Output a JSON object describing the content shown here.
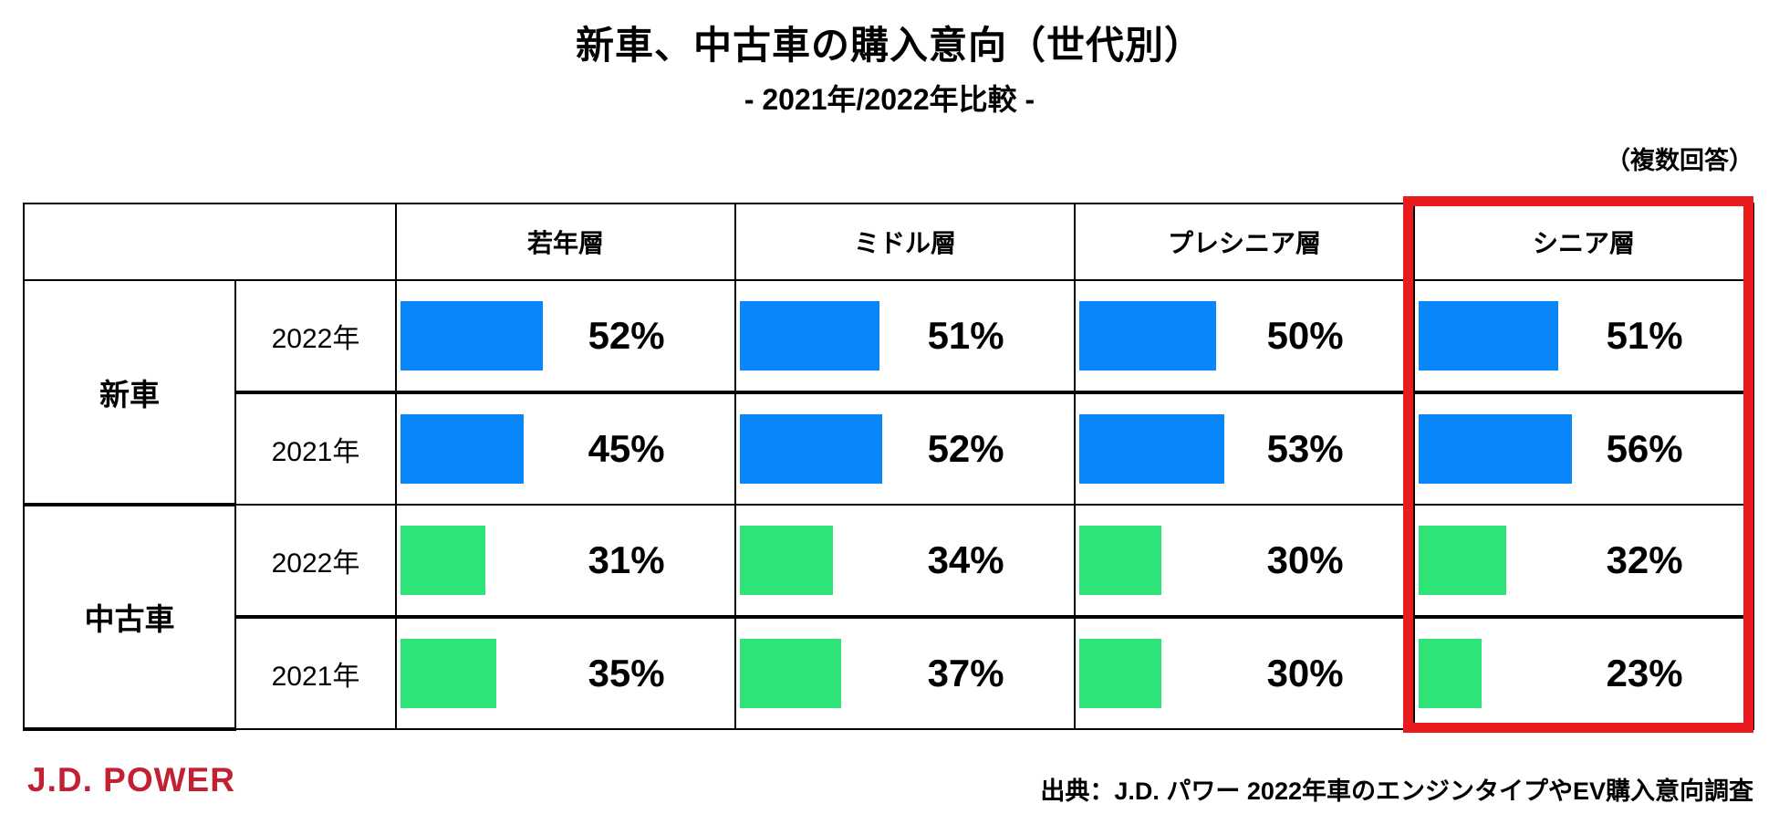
{
  "title": "新車、中古車の購入意向（世代別）",
  "subtitle": "- 2021年/2022年比較 -",
  "note": "（複数回答）",
  "logo_text": "J.D. POWER",
  "source_text": "出典：J.D. パワー 2022年車のエンジンタイプやEV購入意向調査",
  "colors": {
    "new_car_bar": "#0a86fb",
    "used_car_bar": "#2ee377",
    "highlight_box": "#e91b1e",
    "logo_red": "#c22033"
  },
  "chart_data": {
    "type": "bar",
    "title": "新車、中古車の購入意向（世代別）",
    "subtitle": "- 2021年/2022年比較 -",
    "note": "（複数回答）",
    "unit": "%",
    "categories": [
      "若年層",
      "ミドル層",
      "プレシニア層",
      "シニア層"
    ],
    "groups": [
      {
        "label": "新車",
        "series": [
          {
            "name": "2022年",
            "values": [
              52,
              51,
              50,
              51
            ]
          },
          {
            "name": "2021年",
            "values": [
              45,
              52,
              53,
              56
            ]
          }
        ]
      },
      {
        "label": "中古車",
        "series": [
          {
            "name": "2022年",
            "values": [
              31,
              34,
              30,
              32
            ]
          },
          {
            "name": "2021年",
            "values": [
              35,
              37,
              30,
              23
            ]
          }
        ]
      }
    ],
    "highlighted_category": "シニア層",
    "bar_color_new": "#0a86fb",
    "bar_color_used": "#2ee377",
    "legend_position": "none",
    "grid": false,
    "xlim": [
      0,
      100
    ]
  }
}
